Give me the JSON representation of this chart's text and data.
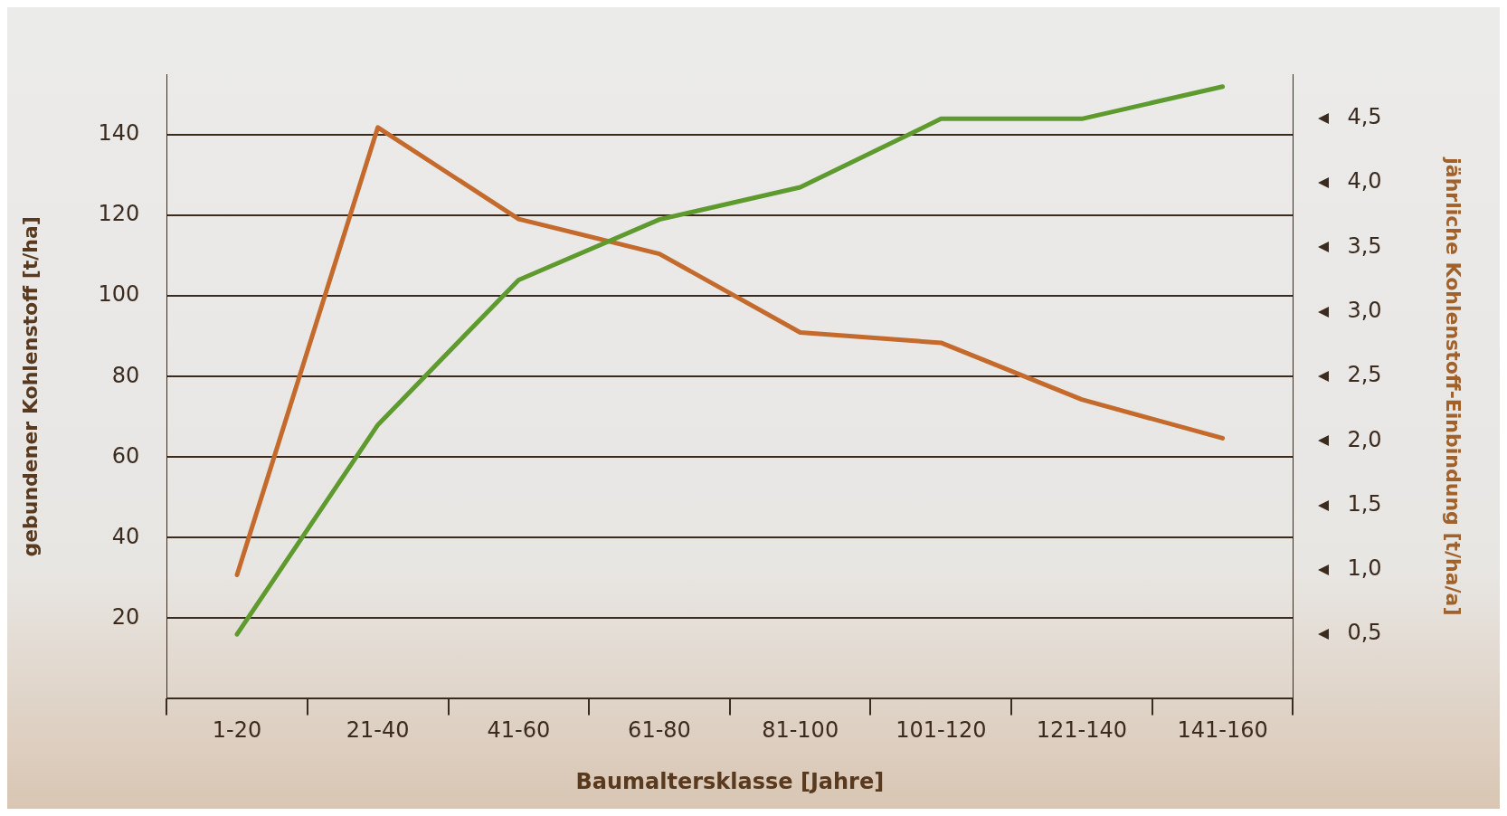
{
  "chart_data": {
    "type": "line",
    "xlabel": "Baumaltersklasse [Jahre]",
    "ylabel": "gebundener Kohlenstoff [t/ha]",
    "y2label": "jährliche Kohlenstoff-Einbindung [t/ha/a]",
    "categories": [
      "1-20",
      "21-40",
      "41-60",
      "61-80",
      "81-100",
      "101-120",
      "121-140",
      "141-160"
    ],
    "series": [
      {
        "color": "#5e9a2e",
        "values": [
          16,
          68,
          104,
          119,
          127,
          144,
          144,
          152
        ]
      },
      {
        "color": "#c46a2c",
        "axis": "y2",
        "values": [
          0.96,
          4.43,
          3.72,
          3.45,
          2.84,
          2.76,
          2.32,
          2.02
        ]
      }
    ],
    "ylim": [
      0,
      155
    ],
    "yticks": [
      {
        "value": 0,
        "label": null
      },
      20,
      40,
      60,
      80,
      100,
      120,
      140
    ],
    "y2lim": [
      0,
      4.84
    ],
    "y2ticks": [
      {
        "value": 0.5,
        "label": "0,5"
      },
      {
        "value": 1,
        "label": "1,0"
      },
      {
        "value": 1.5,
        "label": "1,5"
      },
      {
        "value": 2,
        "label": "2,0"
      },
      {
        "value": 2.5,
        "label": "2,5"
      },
      {
        "value": 3,
        "label": "3,0"
      },
      {
        "value": 3.5,
        "label": "3,5"
      },
      {
        "value": 4,
        "label": "4,0"
      },
      {
        "value": 4.5,
        "label": "4,5"
      }
    ],
    "grid": "y",
    "legend": false,
    "marker": "none",
    "line_style": "solid"
  }
}
